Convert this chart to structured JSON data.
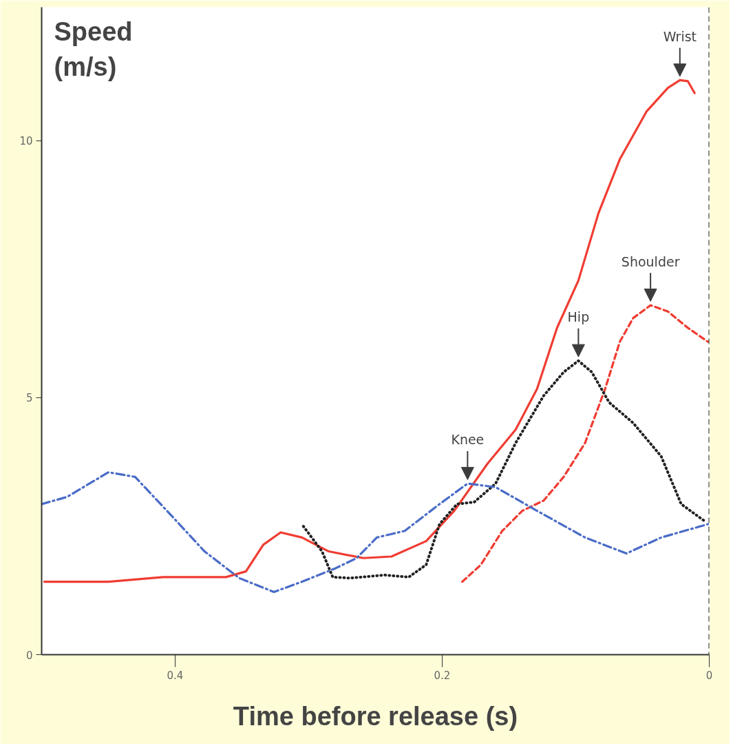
{
  "chart_data": {
    "type": "line",
    "xlabel": "Time before release (s)",
    "ylabel": "Speed (m/s)",
    "xlim": [
      0.5,
      0
    ],
    "xticks": [
      0.4,
      0.2,
      0
    ],
    "ylim": [
      0,
      12.6
    ],
    "yticks": [
      0,
      5,
      10
    ],
    "grid": false,
    "series": [
      {
        "color": "#f03c32",
        "line_style": "solid",
        "x": [
          0.498,
          0.45,
          0.409,
          0.362,
          0.347,
          0.334,
          0.321,
          0.305,
          0.285,
          0.259,
          0.238,
          0.212,
          0.191,
          0.166,
          0.145,
          0.129,
          0.114,
          0.098,
          0.083,
          0.067,
          0.047,
          0.031,
          0.022,
          0.016,
          0.011
        ],
        "values": [
          1.42,
          1.42,
          1.51,
          1.51,
          1.62,
          2.14,
          2.38,
          2.28,
          2.01,
          1.88,
          1.91,
          2.21,
          2.8,
          3.72,
          4.38,
          5.17,
          6.36,
          7.28,
          8.59,
          9.64,
          10.57,
          11.03,
          11.18,
          11.16,
          10.93
        ]
      },
      {
        "color": "#f03c32",
        "line_style": "dashed",
        "x": [
          0.185,
          0.171,
          0.155,
          0.14,
          0.124,
          0.109,
          0.093,
          0.078,
          0.067,
          0.057,
          0.044,
          0.031,
          0.016,
          0.001
        ],
        "values": [
          1.42,
          1.75,
          2.41,
          2.8,
          3.0,
          3.46,
          4.12,
          5.17,
          6.09,
          6.55,
          6.8,
          6.68,
          6.36,
          6.09
        ]
      },
      {
        "color": "#222222",
        "line_style": "dotted",
        "x": [
          0.304,
          0.29,
          0.282,
          0.269,
          0.243,
          0.225,
          0.212,
          0.202,
          0.189,
          0.176,
          0.16,
          0.145,
          0.124,
          0.109,
          0.098,
          0.088,
          0.075,
          0.057,
          0.036,
          0.021,
          0.004
        ],
        "values": [
          2.5,
          2.01,
          1.51,
          1.49,
          1.55,
          1.51,
          1.75,
          2.54,
          2.93,
          2.97,
          3.33,
          4.12,
          5.04,
          5.5,
          5.72,
          5.5,
          4.91,
          4.51,
          3.86,
          2.93,
          2.61
        ]
      },
      {
        "color": "#4a6cc8",
        "line_style": "dashdot",
        "x": [
          0.5,
          0.481,
          0.45,
          0.43,
          0.404,
          0.378,
          0.352,
          0.326,
          0.305,
          0.28,
          0.264,
          0.249,
          0.228,
          0.202,
          0.181,
          0.16,
          0.129,
          0.093,
          0.062,
          0.036,
          0.001
        ],
        "values": [
          2.93,
          3.07,
          3.55,
          3.46,
          2.74,
          2.01,
          1.49,
          1.22,
          1.42,
          1.68,
          1.88,
          2.28,
          2.41,
          2.93,
          3.33,
          3.26,
          2.8,
          2.28,
          1.97,
          2.28,
          2.54
        ]
      }
    ],
    "annotations": [
      {
        "text": "Wrist",
        "x": 0.022,
        "y": 11.18
      },
      {
        "text": "Shoulder",
        "x": 0.044,
        "y": 6.8
      },
      {
        "text": "Hip",
        "x": 0.098,
        "y": 5.72
      },
      {
        "text": "Knee",
        "x": 0.181,
        "y": 3.33
      }
    ],
    "ref_lines": [
      {
        "axis": "x",
        "value": 0,
        "color": "#222222",
        "line_style": "dashed"
      }
    ]
  }
}
